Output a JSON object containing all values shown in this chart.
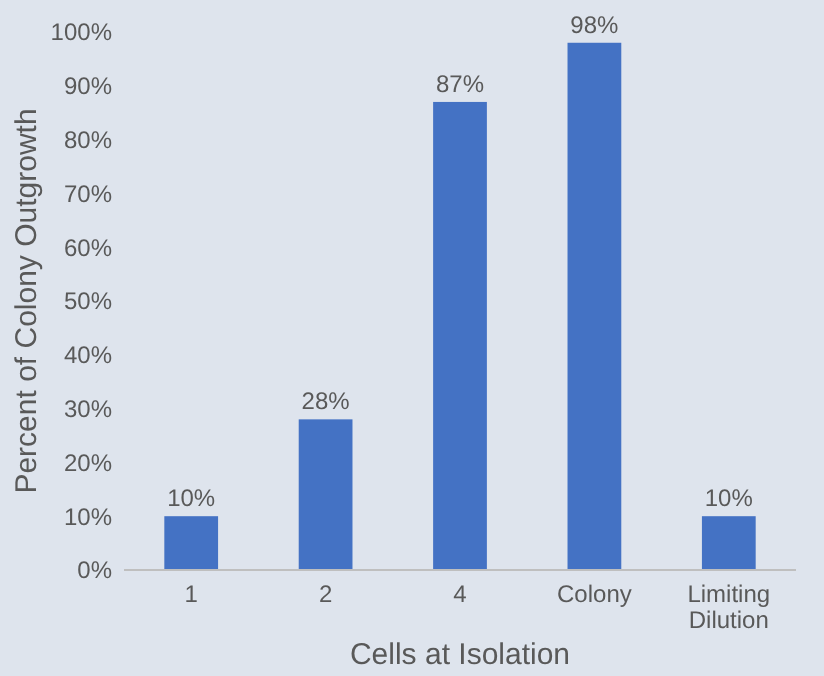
{
  "chart_data": {
    "type": "bar",
    "xlabel": "Cells at Isolation",
    "ylabel": "Percent of Colony Outgrowth",
    "categories": [
      "1",
      "2",
      "4",
      "Colony",
      "Limiting Dilution"
    ],
    "values": [
      10,
      28,
      87,
      98,
      10
    ],
    "color": "#4472c4",
    "value_labels": [
      "10%",
      "28%",
      "87%",
      "98%",
      "10%"
    ],
    "ylim": [
      0,
      100
    ],
    "yticks": [
      {
        "value": 0,
        "label": "0%"
      },
      {
        "value": 10,
        "label": "10%"
      },
      {
        "value": 20,
        "label": "20%"
      },
      {
        "value": 30,
        "label": "30%"
      },
      {
        "value": 40,
        "label": "40%"
      },
      {
        "value": 50,
        "label": "50%"
      },
      {
        "value": 60,
        "label": "60%"
      },
      {
        "value": 70,
        "label": "70%"
      },
      {
        "value": 80,
        "label": "80%"
      },
      {
        "value": 90,
        "label": "90%"
      },
      {
        "value": 100,
        "label": "100%"
      }
    ],
    "grid": false
  }
}
